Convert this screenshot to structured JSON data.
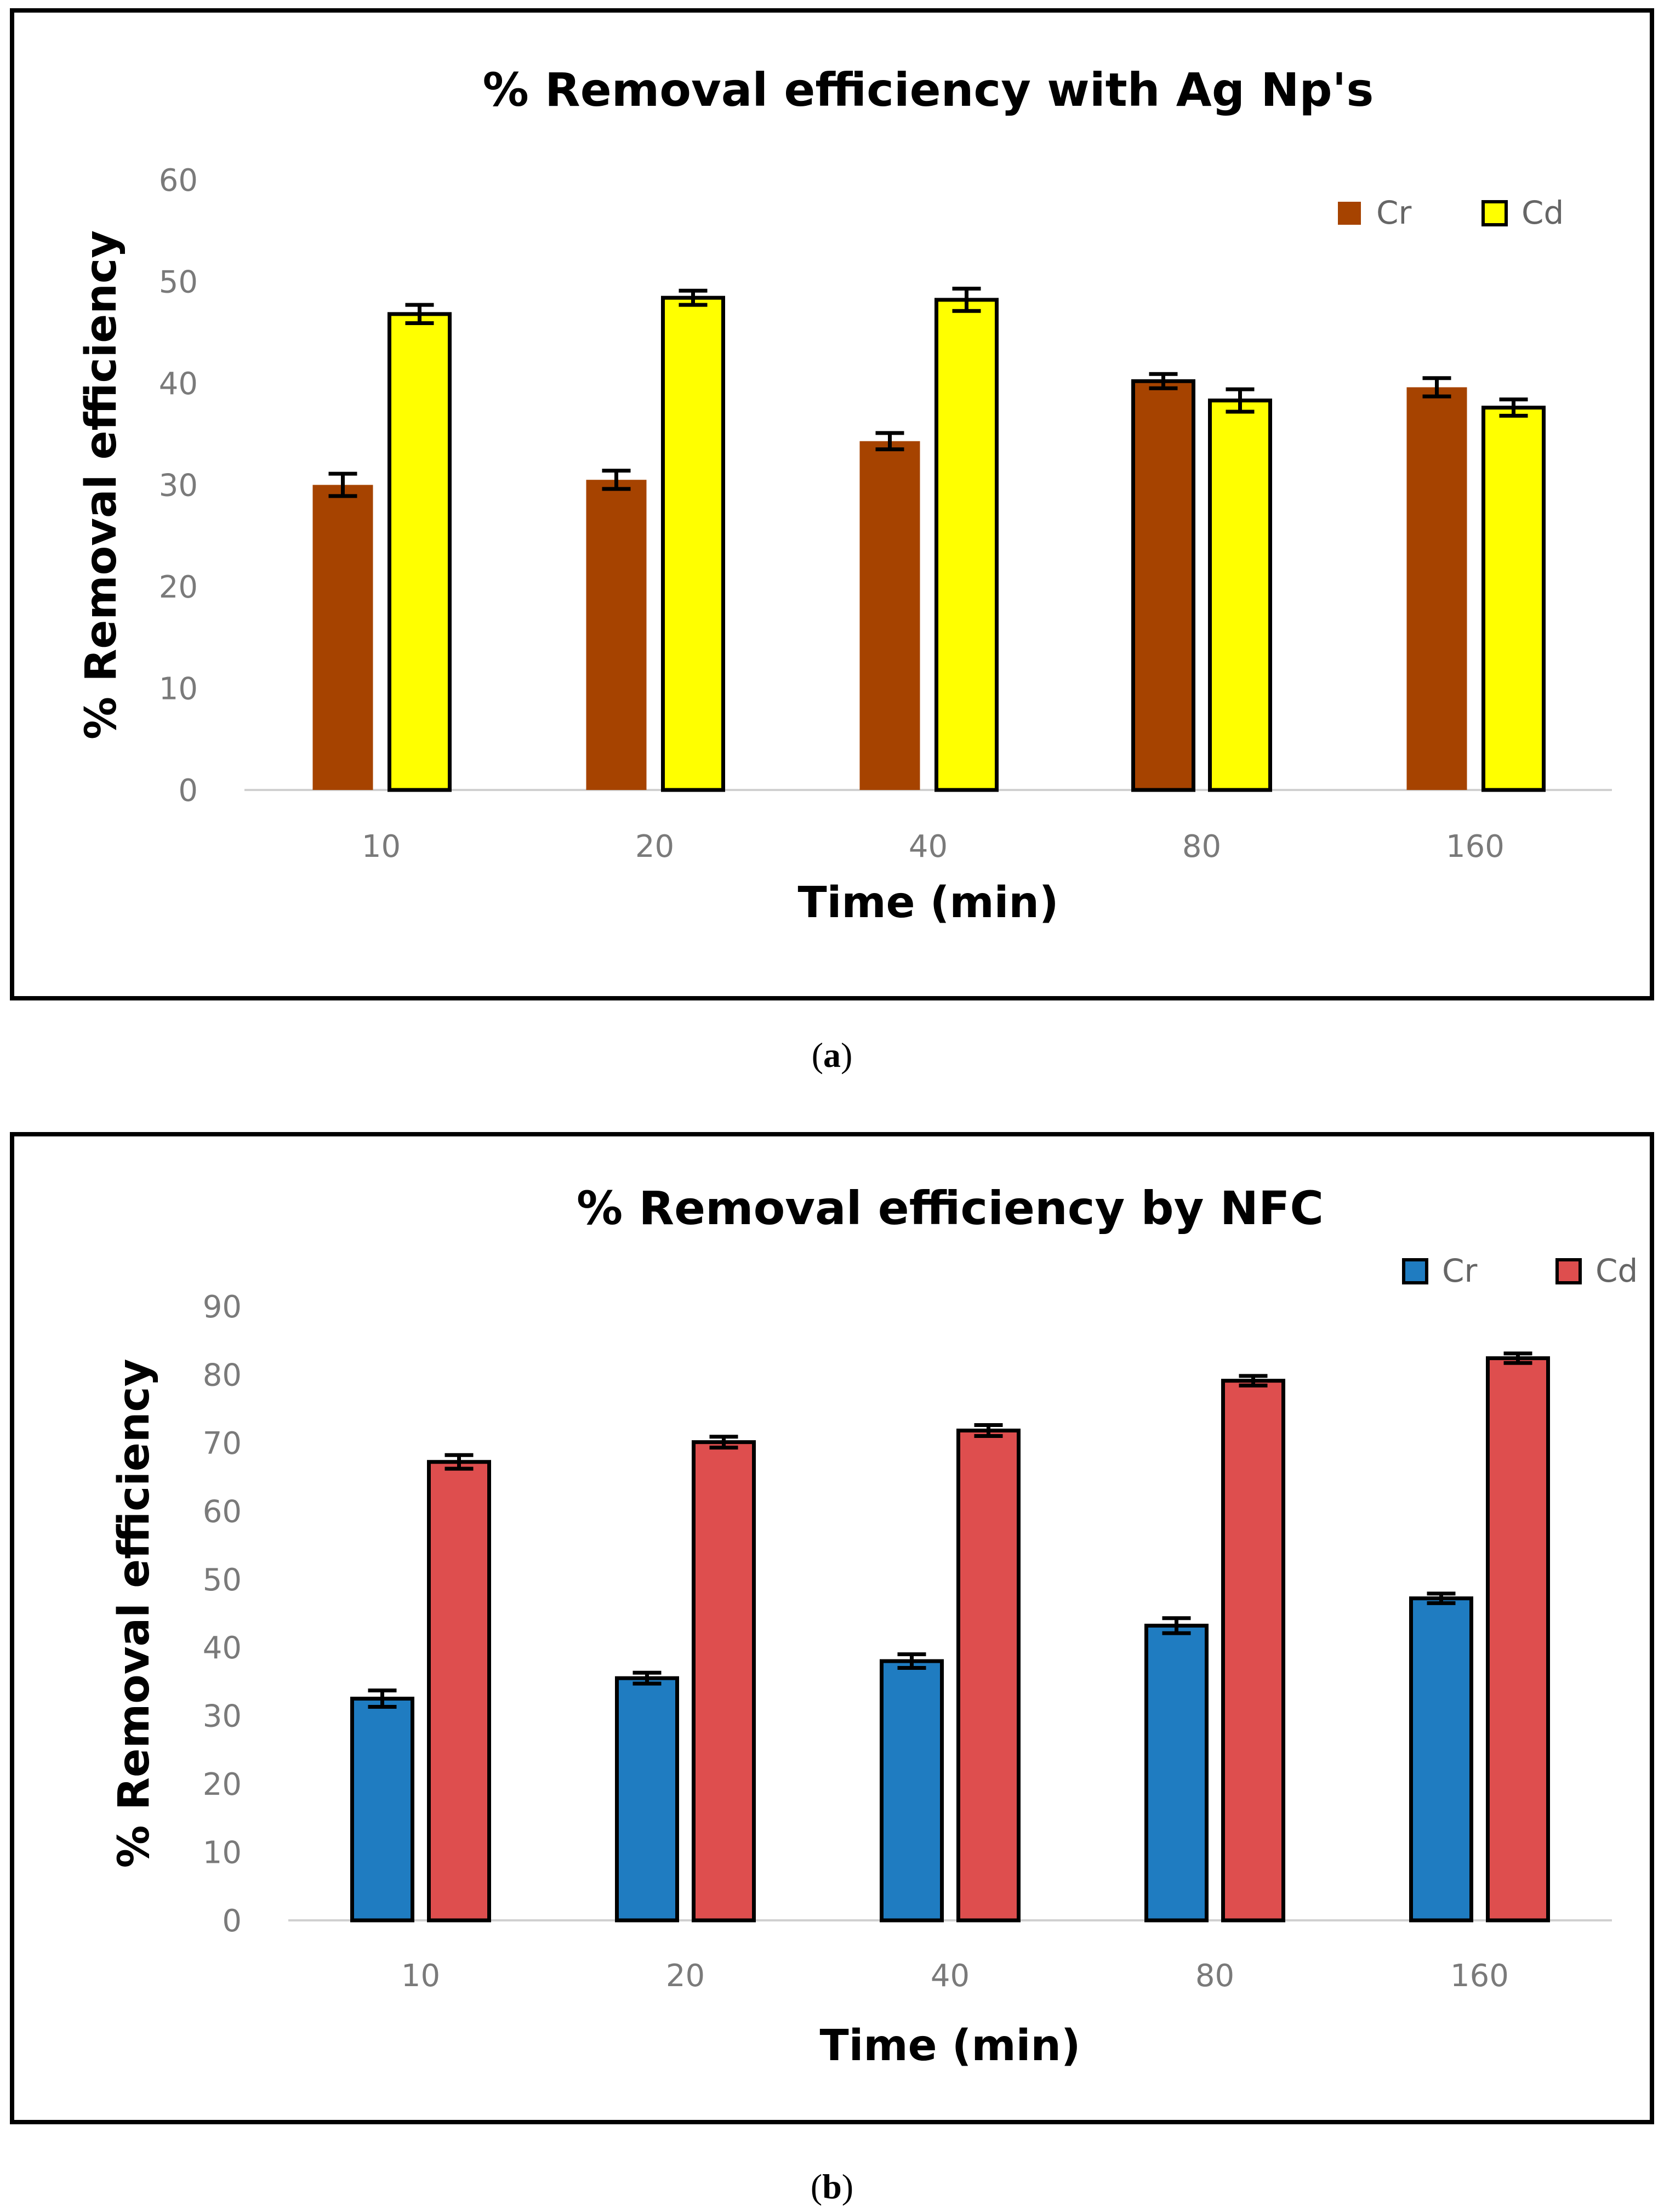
{
  "chart_data": [
    {
      "type": "bar",
      "panel_label": "a",
      "title": "% Removal efficiency with Ag Np's",
      "xlabel": "Time (min)",
      "ylabel": "% Removal efficiency",
      "categories": [
        "10",
        "20",
        "40",
        "80",
        "160"
      ],
      "ylim": [
        0,
        60
      ],
      "yticks": [
        0,
        10,
        20,
        30,
        40,
        50,
        60
      ],
      "legend_position": "top-right",
      "series": [
        {
          "name": "Cr",
          "color": "#a64300",
          "values": [
            30,
            30.5,
            34.3,
            40.2,
            39.6
          ],
          "errors": [
            1.1,
            0.9,
            0.8,
            0.7,
            0.9
          ],
          "outlined": [
            false,
            false,
            false,
            true,
            false
          ]
        },
        {
          "name": "Cd",
          "color": "#ffff00",
          "values": [
            46.8,
            48.4,
            48.2,
            38.3,
            37.6
          ],
          "errors": [
            0.9,
            0.7,
            1.1,
            1.1,
            0.8
          ],
          "outlined": [
            true,
            true,
            true,
            true,
            true
          ]
        }
      ]
    },
    {
      "type": "bar",
      "panel_label": "b",
      "title": "% Removal efficiency by NFC",
      "xlabel": "Time (min)",
      "ylabel": "% Removal efficiency",
      "categories": [
        "10",
        "20",
        "40",
        "80",
        "160"
      ],
      "ylim": [
        0,
        90
      ],
      "yticks": [
        0,
        10,
        20,
        30,
        40,
        50,
        60,
        70,
        80,
        90
      ],
      "legend_position": "top-right",
      "series": [
        {
          "name": "Cr",
          "color": "#1f7cc1",
          "values": [
            32.5,
            35.5,
            38,
            43.2,
            47.2
          ],
          "errors": [
            1.2,
            0.8,
            1.0,
            1.1,
            0.7
          ],
          "outlined": [
            true,
            true,
            true,
            true,
            true
          ]
        },
        {
          "name": "Cd",
          "color": "#de4e4e",
          "values": [
            67.2,
            70.1,
            71.8,
            79.1,
            82.4
          ],
          "errors": [
            1.0,
            0.8,
            0.8,
            0.7,
            0.7
          ],
          "outlined": [
            true,
            true,
            true,
            true,
            true
          ]
        }
      ]
    }
  ]
}
